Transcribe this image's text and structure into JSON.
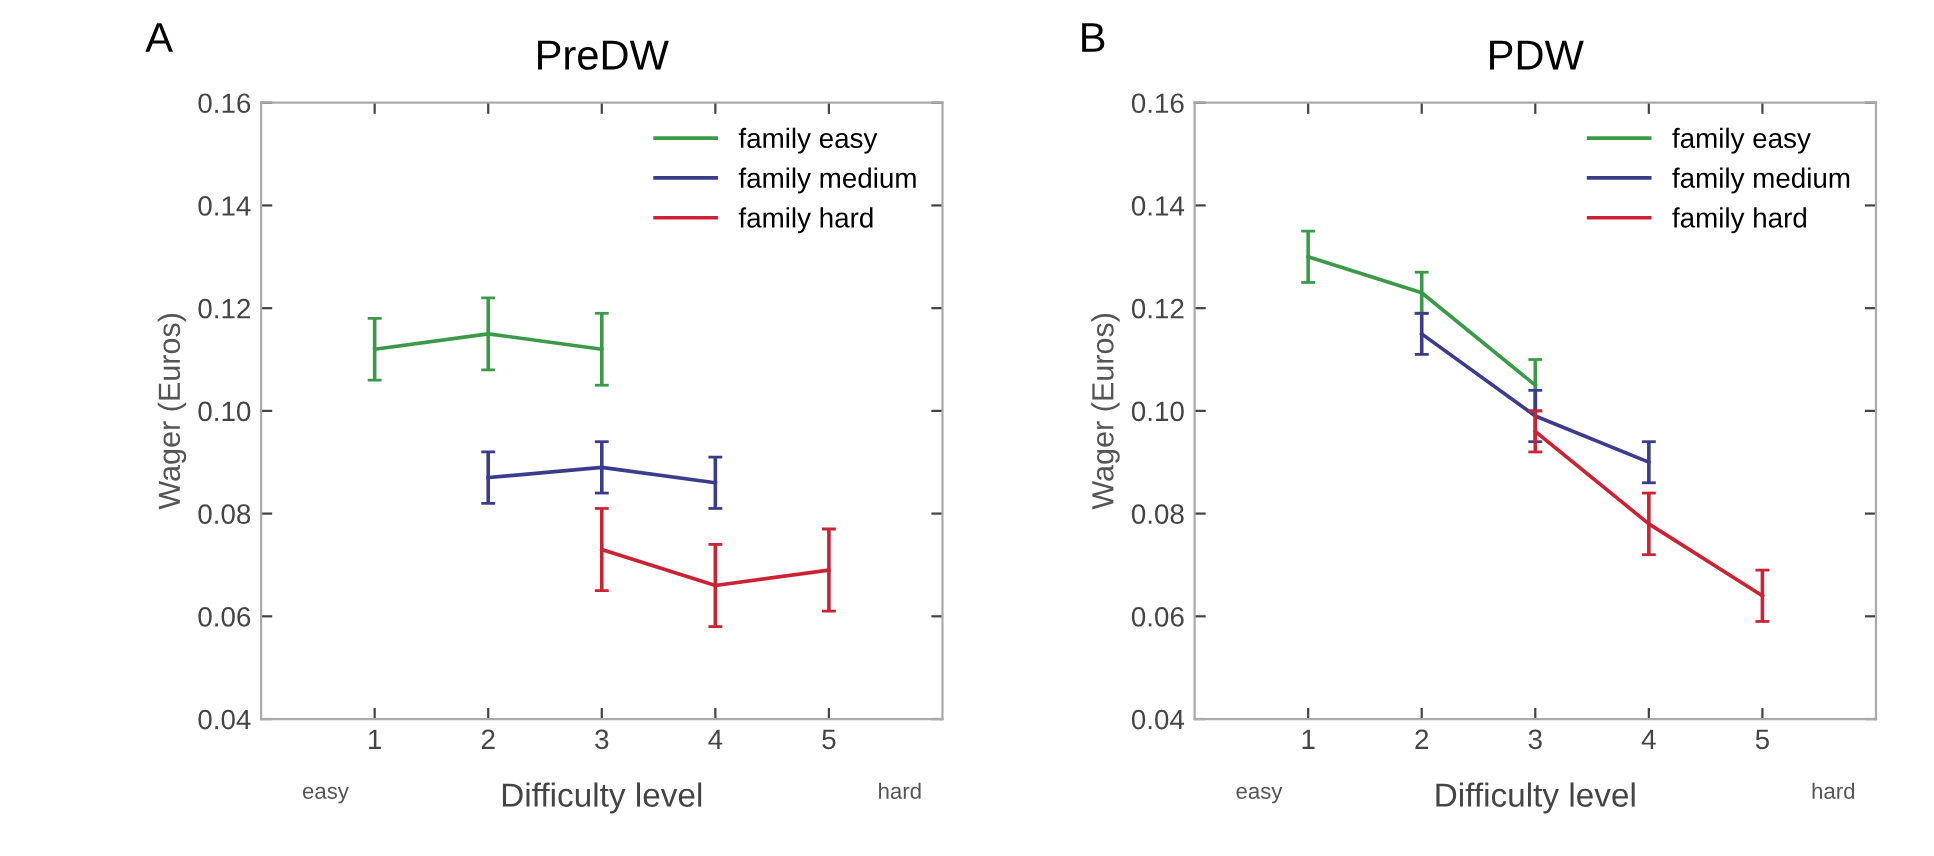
{
  "chart_data": [
    {
      "type": "line",
      "title": "PreDW",
      "xlabel": "Difficulty level",
      "ylabel": "Wager (Euros)",
      "annotations": [
        "A",
        "easy",
        "hard"
      ],
      "xlim": [
        0,
        6
      ],
      "xticks": [
        1,
        2,
        3,
        4,
        5
      ],
      "ylim": [
        0.04,
        0.16
      ],
      "yticks": [
        0.04,
        0.06,
        0.08,
        {
          "value": 0.1,
          "label": "0.10"
        },
        0.12,
        0.14,
        0.16
      ],
      "grid": false,
      "legend": "top right",
      "series": [
        {
          "name": "family easy",
          "color": "#3a9a48",
          "x": [
            1,
            2,
            3
          ],
          "values": [
            0.112,
            0.115,
            0.112
          ],
          "errors": [
            0.006,
            0.007,
            0.007
          ]
        },
        {
          "name": "family medium",
          "color": "#3c3c8c",
          "x": [
            2,
            3,
            4
          ],
          "values": [
            0.087,
            0.089,
            0.086
          ],
          "errors": [
            0.005,
            0.005,
            0.005
          ]
        },
        {
          "name": "family hard",
          "color": "#cc2233",
          "x": [
            3,
            4,
            5
          ],
          "values": [
            0.073,
            0.066,
            0.069
          ],
          "errors": [
            0.008,
            0.008,
            0.008
          ]
        }
      ]
    },
    {
      "type": "line",
      "title": "PDW",
      "xlabel": "Difficulty level",
      "ylabel": "Wager (Euros)",
      "annotations": [
        "B",
        "easy",
        "hard"
      ],
      "xlim": [
        0,
        6
      ],
      "xticks": [
        1,
        2,
        3,
        4,
        5
      ],
      "ylim": [
        0.04,
        0.16
      ],
      "yticks": [
        0.04,
        0.06,
        0.08,
        {
          "value": 0.1,
          "label": "0.10"
        },
        0.12,
        0.14,
        0.16
      ],
      "grid": false,
      "legend": "top right",
      "series": [
        {
          "name": "family easy",
          "color": "#3a9a48",
          "x": [
            1,
            2,
            3
          ],
          "values": [
            0.13,
            0.123,
            0.105
          ],
          "errors": [
            0.005,
            0.004,
            0.005
          ]
        },
        {
          "name": "family medium",
          "color": "#3c3c8c",
          "x": [
            2,
            3,
            4
          ],
          "values": [
            0.115,
            0.099,
            0.09
          ],
          "errors": [
            0.004,
            0.005,
            0.004
          ]
        },
        {
          "name": "family hard",
          "color": "#cc2233",
          "x": [
            3,
            4,
            5
          ],
          "values": [
            0.096,
            0.078,
            0.064
          ],
          "errors": [
            0.004,
            0.006,
            0.005
          ]
        }
      ]
    }
  ]
}
